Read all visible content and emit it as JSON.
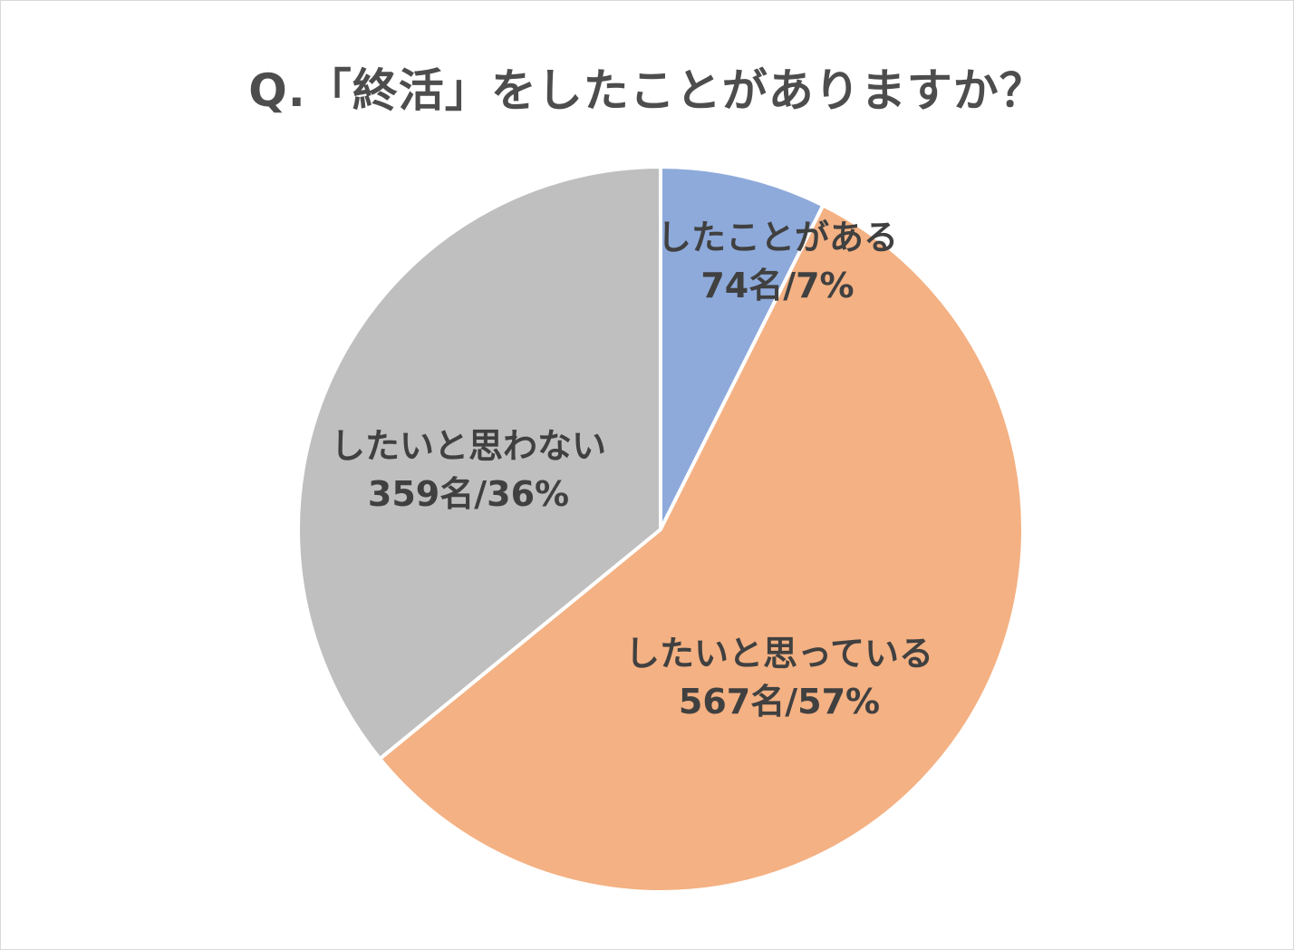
{
  "chart_data": {
    "type": "pie",
    "title": "Q.「終活」をしたことがありますか？",
    "slices": [
      {
        "label": "したことがある",
        "count": 74,
        "count_label": "74名/7%",
        "percent": 7,
        "color": "#8eaadb"
      },
      {
        "label": "したいと思っている",
        "count": 567,
        "count_label": "567名/57%",
        "percent": 57,
        "color": "#f4b183"
      },
      {
        "label": "したいと思わない",
        "count": 359,
        "count_label": "359名/36%",
        "percent": 36,
        "color": "#bfbfbf"
      }
    ],
    "start": "12 o'clock",
    "direction": "clockwise",
    "legend": "none",
    "data_labels": "inside"
  }
}
